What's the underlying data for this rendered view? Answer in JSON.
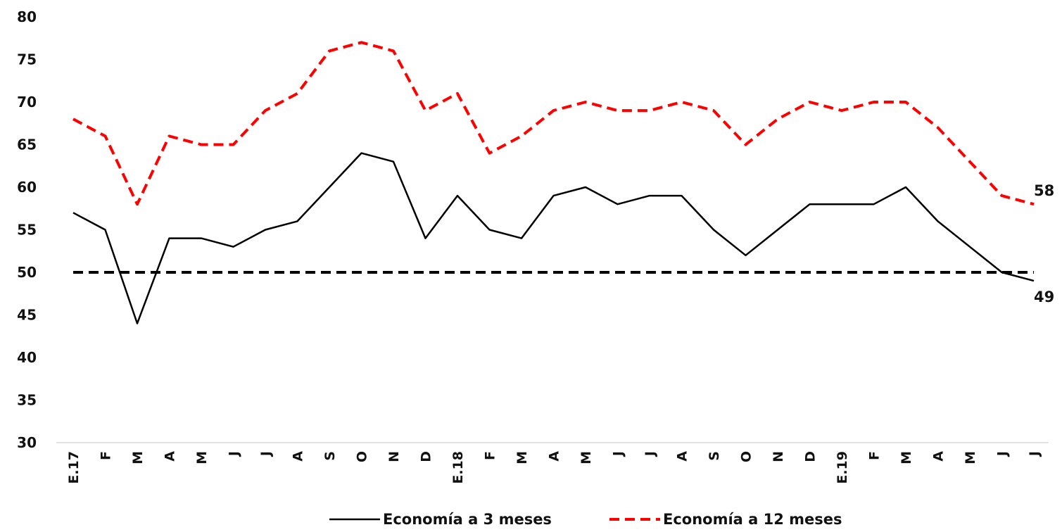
{
  "chart_data": {
    "type": "line",
    "categories": [
      "E.17",
      "F",
      "M",
      "A",
      "M",
      "J",
      "J",
      "A",
      "S",
      "O",
      "N",
      "D",
      "E.18",
      "F",
      "M",
      "A",
      "M",
      "J",
      "J",
      "A",
      "S",
      "O",
      "N",
      "D",
      "E.19",
      "F",
      "M",
      "A",
      "M",
      "J",
      "J"
    ],
    "series": [
      {
        "name": "Economía a 3 meses",
        "color": "#000000",
        "dashed": false,
        "values": [
          57,
          55,
          44,
          54,
          54,
          53,
          55,
          56,
          60,
          64,
          63,
          54,
          59,
          55,
          54,
          59,
          60,
          58,
          59,
          59,
          55,
          52,
          55,
          58,
          58,
          58,
          60,
          56,
          53,
          50,
          49
        ]
      },
      {
        "name": "Economía a 12 meses",
        "color": "#ff0000",
        "dashed": true,
        "values": [
          68,
          66,
          58,
          66,
          65,
          65,
          69,
          71,
          76,
          77,
          76,
          69,
          71,
          64,
          66,
          69,
          70,
          69,
          69,
          70,
          69,
          65,
          68,
          70,
          69,
          70,
          70,
          67,
          63,
          59,
          58
        ]
      }
    ],
    "reference_line": 50,
    "ylim": [
      30,
      80
    ],
    "yticks": [
      30,
      35,
      40,
      45,
      50,
      55,
      60,
      65,
      70,
      75,
      80
    ],
    "grid": false,
    "legend": "bottom"
  }
}
